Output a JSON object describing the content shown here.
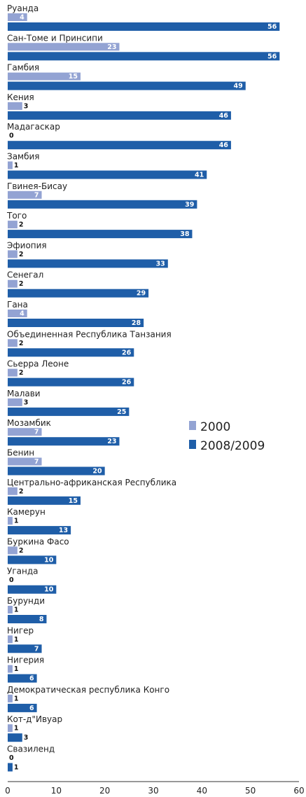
{
  "chart_data": {
    "type": "bar",
    "orientation": "horizontal",
    "title": "",
    "xlabel": "",
    "ylabel": "",
    "xlim": [
      0,
      60
    ],
    "xticks": [
      "0",
      "10",
      "20",
      "30",
      "40",
      "50",
      "60"
    ],
    "grid": false,
    "legend_position": "right",
    "categories": [
      "Руанда",
      "Сан-Томе и Принсипи",
      "Гамбия",
      "Кения",
      "Мадагаскар",
      "Замбия",
      "Гвинея-Бисау",
      "Того",
      "Эфиопия",
      "Сенегал",
      "Гана",
      "Объединенная Республика Танзания",
      "Сьерра Леоне",
      "Малави",
      "Мозамбик",
      "Бенин",
      "Центрально-африканская Республика",
      "Камерун",
      "Буркина Фасо",
      "Уганда",
      "Бурунди",
      "Нигер",
      "Нигерия",
      "Демократическая республика Конго",
      "Кот-д\"Ивуар",
      "Свазиленд"
    ],
    "series": [
      {
        "name": "2000",
        "color": "#93a3d3",
        "values": [
          4,
          23,
          15,
          3,
          0,
          1,
          7,
          2,
          2,
          2,
          4,
          2,
          2,
          3,
          7,
          7,
          2,
          1,
          2,
          0,
          1,
          1,
          1,
          1,
          1,
          0
        ]
      },
      {
        "name": "2008/2009",
        "color": "#1f5ea8",
        "values": [
          56,
          56,
          49,
          46,
          46,
          41,
          39,
          38,
          33,
          29,
          28,
          26,
          26,
          25,
          23,
          20,
          15,
          13,
          10,
          10,
          8,
          7,
          6,
          6,
          3,
          1
        ]
      }
    ]
  }
}
